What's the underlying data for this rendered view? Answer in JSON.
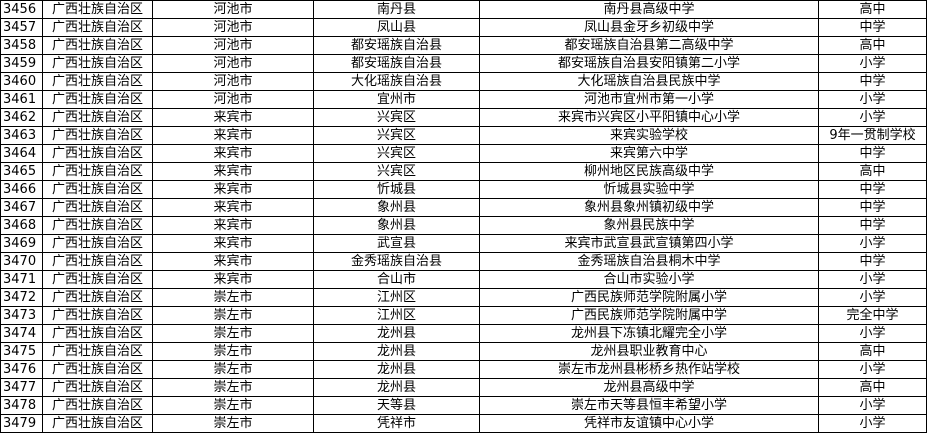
{
  "rows": [
    [
      "3456",
      "广西壮族自治区",
      "河池市",
      "南丹县",
      "南丹县高级中学",
      "高中"
    ],
    [
      "3457",
      "广西壮族自治区",
      "河池市",
      "凤山县",
      "凤山县金牙乡初级中学",
      "中学"
    ],
    [
      "3458",
      "广西壮族自治区",
      "河池市",
      "都安瑶族自治县",
      "都安瑶族自治县第二高级中学",
      "高中"
    ],
    [
      "3459",
      "广西壮族自治区",
      "河池市",
      "都安瑶族自治县",
      "都安瑶族自治县安阳镇第二小学",
      "小学"
    ],
    [
      "3460",
      "广西壮族自治区",
      "河池市",
      "大化瑶族自治县",
      "大化瑶族自治县民族中学",
      "中学"
    ],
    [
      "3461",
      "广西壮族自治区",
      "河池市",
      "宜州市",
      "河池市宜州市第一小学",
      "小学"
    ],
    [
      "3462",
      "广西壮族自治区",
      "来宾市",
      "兴宾区",
      "来宾市兴宾区小平阳镇中心小学",
      "小学"
    ],
    [
      "3463",
      "广西壮族自治区",
      "来宾市",
      "兴宾区",
      "来宾实验学校",
      "9年一贯制学校"
    ],
    [
      "3464",
      "广西壮族自治区",
      "来宾市",
      "兴宾区",
      "来宾第六中学",
      "中学"
    ],
    [
      "3465",
      "广西壮族自治区",
      "来宾市",
      "兴宾区",
      "柳州地区民族高级中学",
      "高中"
    ],
    [
      "3466",
      "广西壮族自治区",
      "来宾市",
      "忻城县",
      "忻城县实验中学",
      "中学"
    ],
    [
      "3467",
      "广西壮族自治区",
      "来宾市",
      "象州县",
      "象州县象州镇初级中学",
      "中学"
    ],
    [
      "3468",
      "广西壮族自治区",
      "来宾市",
      "象州县",
      "象州县民族中学",
      "中学"
    ],
    [
      "3469",
      "广西壮族自治区",
      "来宾市",
      "武宣县",
      "来宾市武宣县武宣镇第四小学",
      "小学"
    ],
    [
      "3470",
      "广西壮族自治区",
      "来宾市",
      "金秀瑶族自治县",
      "金秀瑶族自治县桐木中学",
      "中学"
    ],
    [
      "3471",
      "广西壮族自治区",
      "来宾市",
      "合山市",
      "合山市实验小学",
      "小学"
    ],
    [
      "3472",
      "广西壮族自治区",
      "崇左市",
      "江州区",
      "广西民族师范学院附属小学",
      "小学"
    ],
    [
      "3473",
      "广西壮族自治区",
      "崇左市",
      "江州区",
      "广西民族师范学院附属中学",
      "完全中学"
    ],
    [
      "3474",
      "广西壮族自治区",
      "崇左市",
      "龙州县",
      "龙州县下冻镇北耀完全小学",
      "小学"
    ],
    [
      "3475",
      "广西壮族自治区",
      "崇左市",
      "龙州县",
      "龙州县职业教育中心",
      "高中"
    ],
    [
      "3476",
      "广西壮族自治区",
      "崇左市",
      "龙州县",
      "崇左市龙州县彬桥乡热作站学校",
      "小学"
    ],
    [
      "3477",
      "广西壮族自治区",
      "崇左市",
      "龙州县",
      "龙州县高级中学",
      "高中"
    ],
    [
      "3478",
      "广西壮族自治区",
      "崇左市",
      "天等县",
      "崇左市天等县恒丰希望小学",
      "小学"
    ],
    [
      "3479",
      "广西壮族自治区",
      "崇左市",
      "凭祥市",
      "凭祥市友谊镇中心小学",
      "小学"
    ]
  ]
}
